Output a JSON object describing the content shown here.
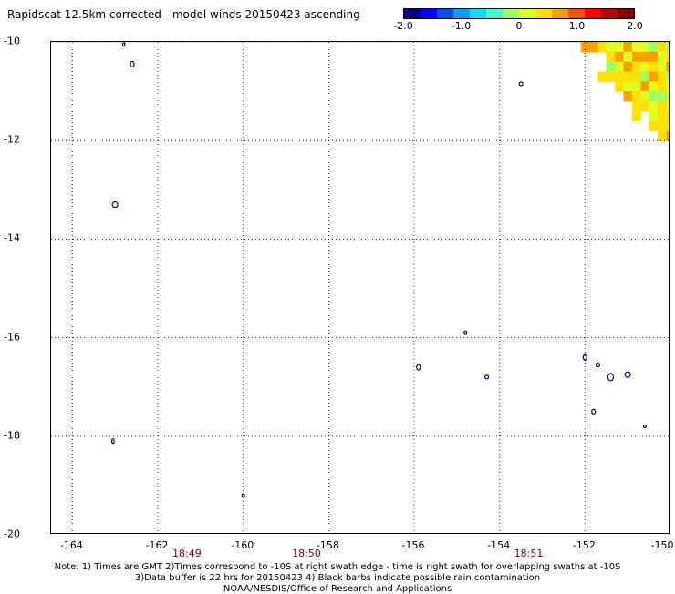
{
  "title": "Rapidscat 12.5km corrected - model winds 20150423 ascending",
  "colorbar": {
    "ticks": [
      "-2.0",
      "-1.0",
      "0",
      "1.0",
      "2.0"
    ],
    "tick_values": [
      -2,
      -1,
      0,
      1,
      2
    ],
    "colors": [
      "#00008b",
      "#0000ff",
      "#0050ff",
      "#00a0ff",
      "#00e0ff",
      "#40ffd0",
      "#a0ff60",
      "#e0ff20",
      "#ffe000",
      "#ffa000",
      "#ff5000",
      "#ff0000",
      "#c00000",
      "#8b0000"
    ]
  },
  "axes": {
    "y_labels": [
      "-10",
      "-12",
      "-14",
      "-16",
      "-18",
      "-20"
    ],
    "y_values": [
      -10,
      -12,
      -14,
      -16,
      -18,
      -20
    ],
    "x_labels": [
      "-164",
      "-162",
      "-160",
      "-158",
      "-156",
      "-154",
      "-152",
      "-150"
    ],
    "x_values": [
      -164,
      -162,
      -160,
      -158,
      -156,
      -154,
      -152,
      -150
    ],
    "lon_range": [
      -164.5,
      -150
    ],
    "lat_range": [
      -20,
      -10
    ]
  },
  "times": [
    {
      "label": "18:49",
      "lon": -161.3
    },
    {
      "label": "18:50",
      "lon": -158.5
    },
    {
      "label": "18:51",
      "lon": -153.3
    }
  ],
  "notes": [
    "Note: 1) Times are GMT 2)Times correspond to -10S at right swath edge - time is right swath for overlapping swaths at -10S",
    "3)Data buffer is 22 hrs for 20150423 4) Black barbs indicate possible rain contamination",
    "NOAA/NESDIS/Office of Research and Applications"
  ],
  "colors": {
    "land_outline": "#000080",
    "grid": "#000000",
    "time_label": "#8b0000"
  }
}
